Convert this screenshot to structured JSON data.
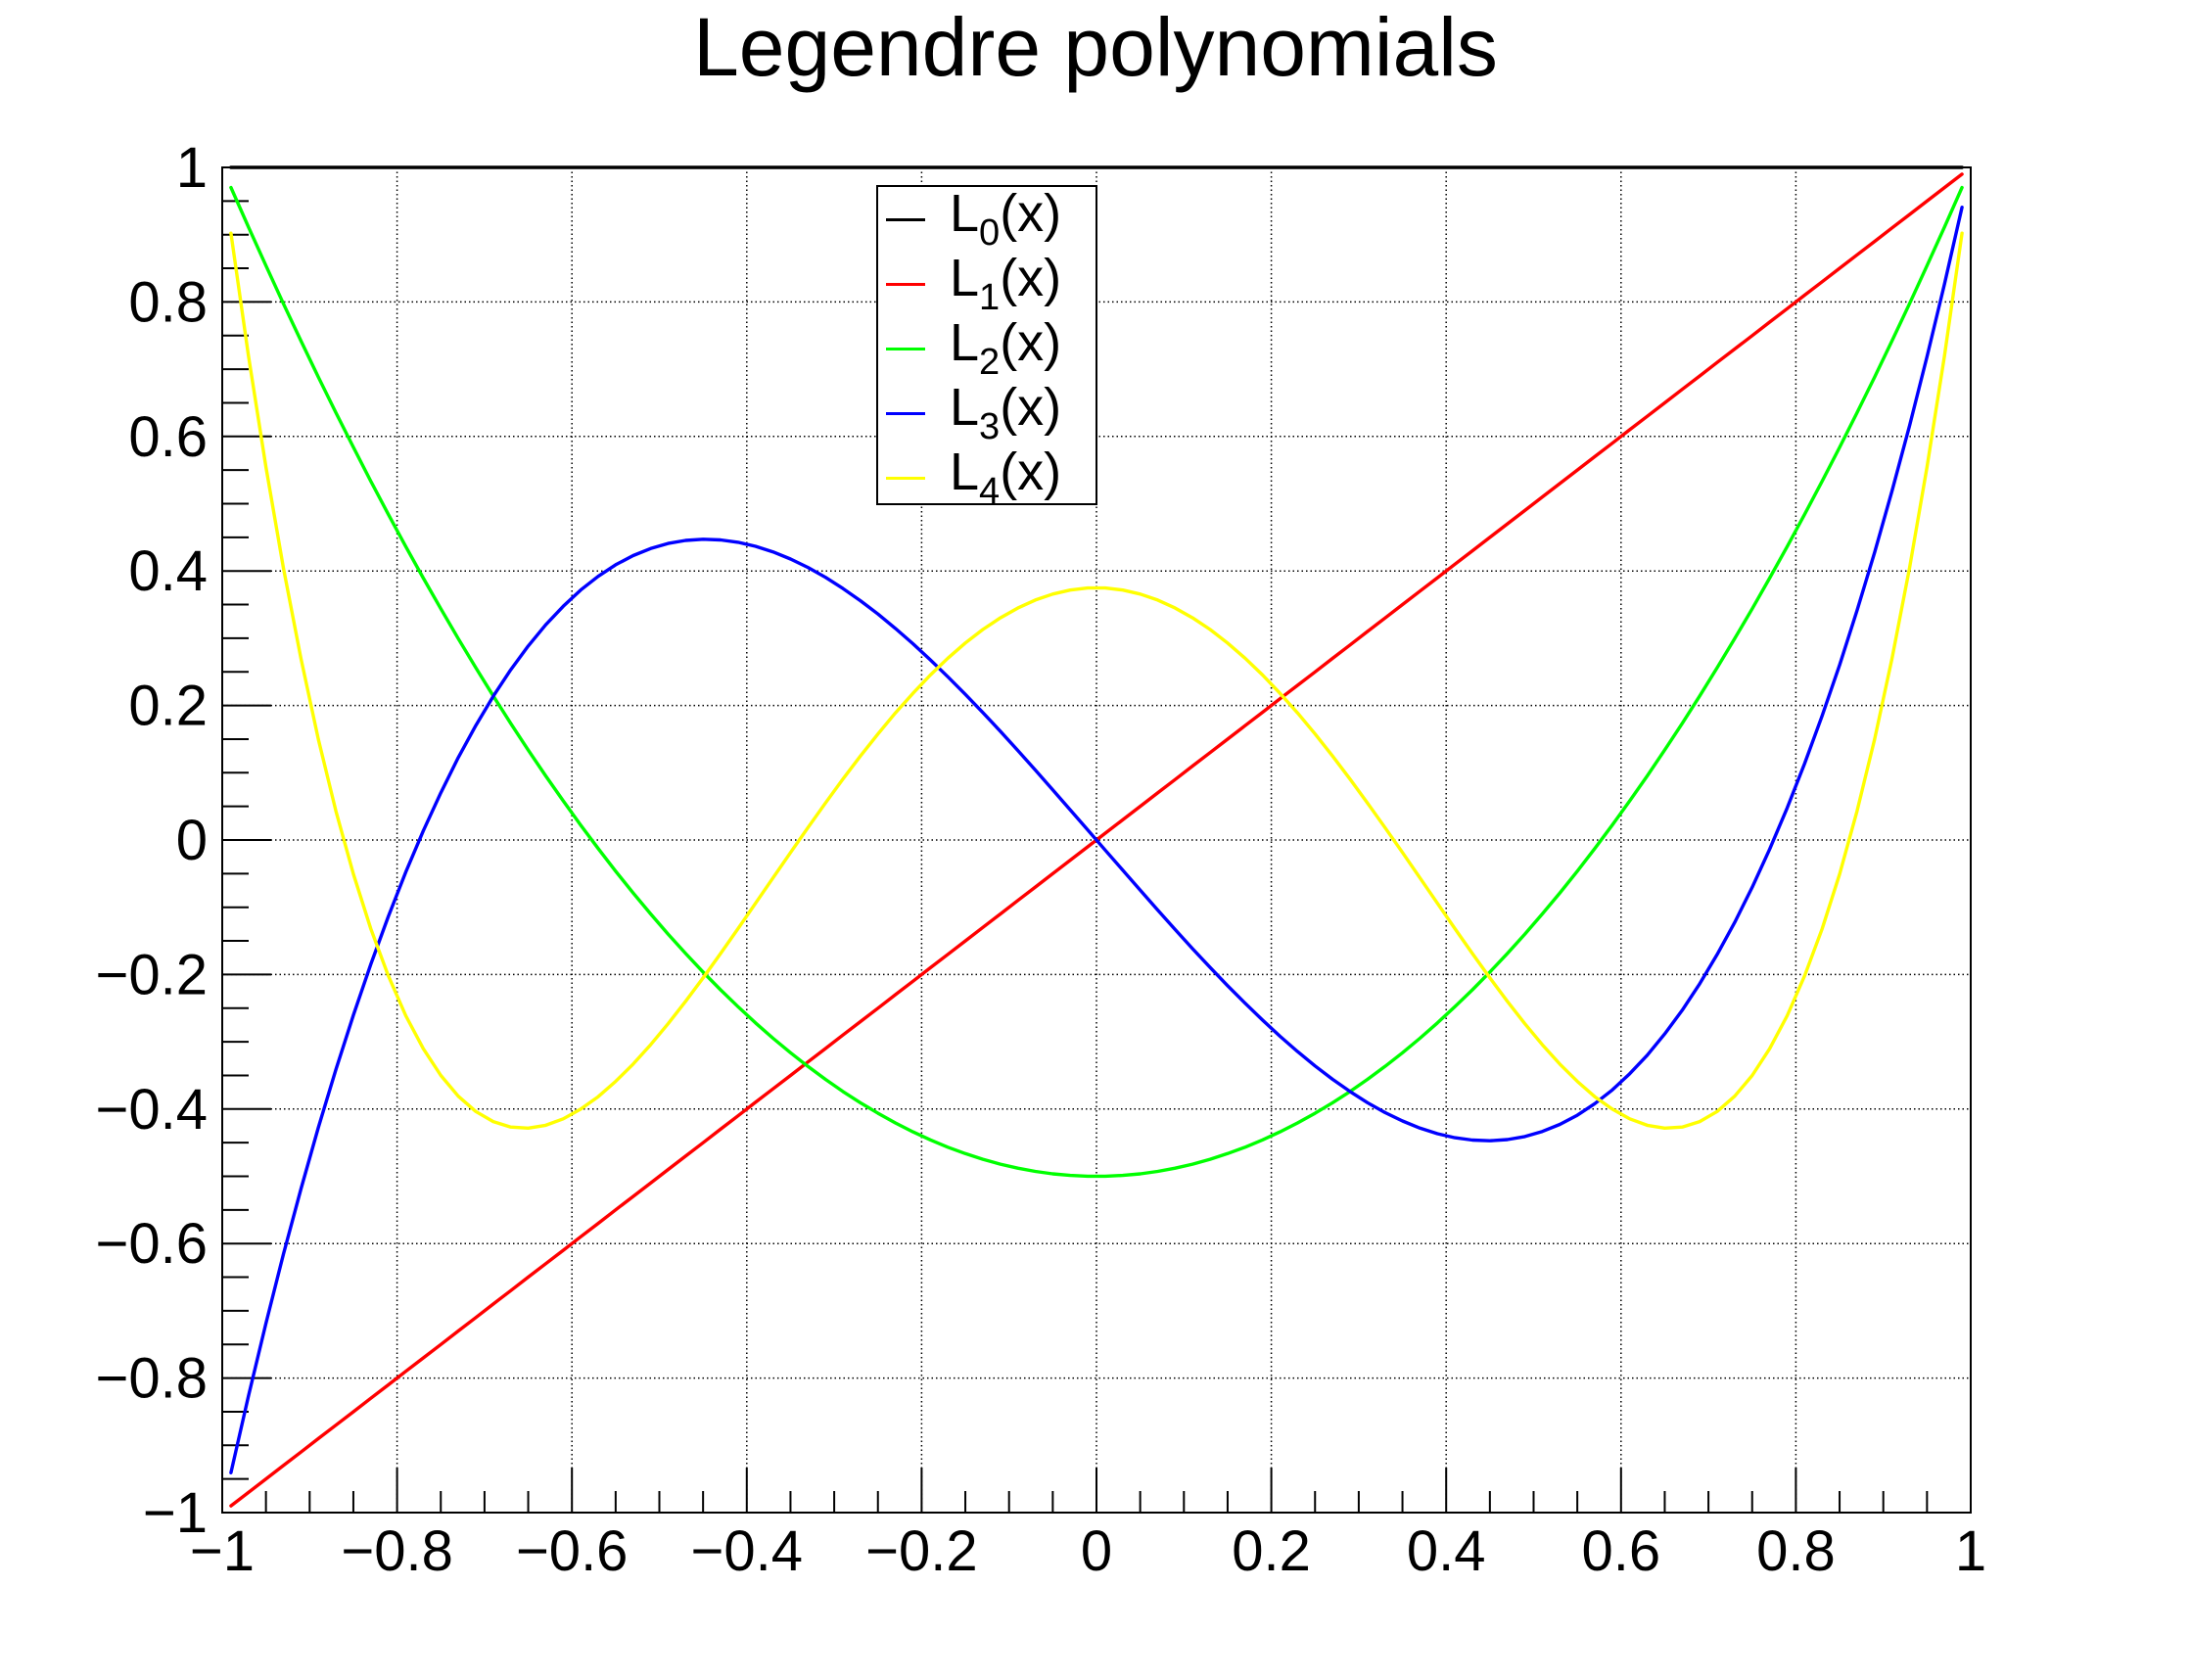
{
  "title": "Legendre polynomials",
  "chart_data": {
    "type": "line",
    "title": "Legendre polynomials",
    "xlabel": "",
    "ylabel": "",
    "xlim": [
      -1,
      1
    ],
    "ylim": [
      -1,
      1
    ],
    "grid": true,
    "grid_style": "dotted",
    "axis_color": "#000000",
    "background_color": "#ffffff",
    "minor_tick_step": 0.05,
    "legend_position": "top-center",
    "xticks": {
      "values": [
        -1,
        -0.8,
        -0.6,
        -0.4,
        -0.2,
        0,
        0.2,
        0.4,
        0.6,
        0.8,
        1
      ],
      "labels": [
        "−1",
        "−0.8",
        "−0.6",
        "−0.4",
        "−0.2",
        "0",
        "0.2",
        "0.4",
        "0.6",
        "0.8",
        "1"
      ]
    },
    "yticks": {
      "values": [
        -1,
        -0.8,
        -0.6,
        -0.4,
        -0.2,
        0,
        0.2,
        0.4,
        0.6,
        0.8,
        1
      ],
      "labels": [
        "−1",
        "−0.8",
        "−0.6",
        "−0.4",
        "−0.2",
        "0",
        "0.2",
        "0.4",
        "0.6",
        "0.8",
        "1"
      ]
    },
    "legend": {
      "entries": [
        {
          "base": "L",
          "sub": "0",
          "suffix": "(x)",
          "color": "#000000"
        },
        {
          "base": "L",
          "sub": "1",
          "suffix": "(x)",
          "color": "#ff0000"
        },
        {
          "base": "L",
          "sub": "2",
          "suffix": "(x)",
          "color": "#00ff00"
        },
        {
          "base": "L",
          "sub": "3",
          "suffix": "(x)",
          "color": "#0000ff"
        },
        {
          "base": "L",
          "sub": "4",
          "suffix": "(x)",
          "color": "#ffff00"
        }
      ]
    },
    "x": [
      -0.99,
      -0.97,
      -0.95,
      -0.93,
      -0.91,
      -0.89,
      -0.87,
      -0.85,
      -0.83,
      -0.81,
      -0.79,
      -0.77,
      -0.75,
      -0.73,
      -0.71,
      -0.69,
      -0.67,
      -0.65,
      -0.63,
      -0.61,
      -0.59,
      -0.57,
      -0.55,
      -0.53,
      -0.51,
      -0.49,
      -0.47,
      -0.45,
      -0.43,
      -0.41,
      -0.39,
      -0.37,
      -0.35,
      -0.33,
      -0.31,
      -0.29,
      -0.27,
      -0.25,
      -0.23,
      -0.21,
      -0.19,
      -0.17,
      -0.15,
      -0.13,
      -0.11,
      -0.09,
      -0.07,
      -0.05,
      -0.03,
      -0.01,
      0.01,
      0.03,
      0.05,
      0.07,
      0.09,
      0.11,
      0.13,
      0.15,
      0.17,
      0.19,
      0.21,
      0.23,
      0.25,
      0.27,
      0.29,
      0.31,
      0.33,
      0.35,
      0.37,
      0.39,
      0.41,
      0.43,
      0.45,
      0.47,
      0.49,
      0.51,
      0.53,
      0.55,
      0.57,
      0.59,
      0.61,
      0.63,
      0.65,
      0.67,
      0.69,
      0.71,
      0.73,
      0.75,
      0.77,
      0.79,
      0.81,
      0.83,
      0.85,
      0.87,
      0.89,
      0.91,
      0.93,
      0.95,
      0.97,
      0.99
    ],
    "series": [
      {
        "id": "L0",
        "name": "L0(x)",
        "color": "#000000",
        "y_const": 1
      },
      {
        "id": "L1",
        "name": "L1(x)",
        "color": "#ff0000",
        "y": [
          -0.99,
          -0.97,
          -0.95,
          -0.93,
          -0.91,
          -0.89,
          -0.87,
          -0.85,
          -0.83,
          -0.81,
          -0.79,
          -0.77,
          -0.75,
          -0.73,
          -0.71,
          -0.69,
          -0.67,
          -0.65,
          -0.63,
          -0.61,
          -0.59,
          -0.57,
          -0.55,
          -0.53,
          -0.51,
          -0.49,
          -0.47,
          -0.45,
          -0.43,
          -0.41,
          -0.39,
          -0.37,
          -0.35,
          -0.33,
          -0.31,
          -0.29,
          -0.27,
          -0.25,
          -0.23,
          -0.21,
          -0.19,
          -0.17,
          -0.15,
          -0.13,
          -0.11,
          -0.09,
          -0.07,
          -0.05,
          -0.03,
          -0.01,
          0.01,
          0.03,
          0.05,
          0.07,
          0.09,
          0.11,
          0.13,
          0.15,
          0.17,
          0.19,
          0.21,
          0.23,
          0.25,
          0.27,
          0.29,
          0.31,
          0.33,
          0.35,
          0.37,
          0.39,
          0.41,
          0.43,
          0.45,
          0.47,
          0.49,
          0.51,
          0.53,
          0.55,
          0.57,
          0.59,
          0.61,
          0.63,
          0.65,
          0.67,
          0.69,
          0.71,
          0.73,
          0.75,
          0.77,
          0.79,
          0.81,
          0.83,
          0.85,
          0.87,
          0.89,
          0.91,
          0.93,
          0.95,
          0.97,
          0.99
        ]
      },
      {
        "id": "L2",
        "name": "L2(x)",
        "color": "#00ff00",
        "y": [
          0.9702,
          0.9114,
          0.8538,
          0.7974,
          0.7422,
          0.6882,
          0.6354,
          0.5838,
          0.5334,
          0.4842,
          0.4362,
          0.3894,
          0.3438,
          0.2994,
          0.2562,
          0.2142,
          0.1734,
          0.1338,
          0.0954,
          0.0582,
          0.0222,
          -0.0127,
          -0.0463,
          -0.0787,
          -0.1099,
          -0.1399,
          -0.1687,
          -0.1963,
          -0.2227,
          -0.2479,
          -0.2719,
          -0.2947,
          -0.3163,
          -0.3367,
          -0.3559,
          -0.3739,
          -0.3907,
          -0.4063,
          -0.4207,
          -0.4339,
          -0.4459,
          -0.4567,
          -0.4663,
          -0.4747,
          -0.4819,
          -0.4879,
          -0.4927,
          -0.4963,
          -0.4987,
          -0.4999,
          -0.4999,
          -0.4987,
          -0.4963,
          -0.4927,
          -0.4879,
          -0.4819,
          -0.4747,
          -0.4663,
          -0.4567,
          -0.4459,
          -0.4339,
          -0.4207,
          -0.4063,
          -0.3907,
          -0.3739,
          -0.3559,
          -0.3367,
          -0.3163,
          -0.2947,
          -0.2719,
          -0.2479,
          -0.2227,
          -0.1963,
          -0.1687,
          -0.1399,
          -0.1099,
          -0.0787,
          -0.0463,
          -0.0127,
          0.0222,
          0.0582,
          0.0954,
          0.1338,
          0.1734,
          0.2142,
          0.2562,
          0.2994,
          0.3438,
          0.3894,
          0.4362,
          0.4842,
          0.5334,
          0.5838,
          0.6354,
          0.6882,
          0.7422,
          0.7974,
          0.8538,
          0.9114,
          0.9702
        ]
      },
      {
        "id": "L3",
        "name": "L3(x)",
        "color": "#0000ff",
        "y": [
          -0.9407,
          -0.8267,
          -0.7184,
          -0.6159,
          -0.5189,
          -0.4274,
          -0.3413,
          -0.2603,
          -0.1845,
          -0.1136,
          -0.0476,
          0.0137,
          0.0703,
          0.1225,
          0.1702,
          0.2137,
          0.2531,
          0.2884,
          0.3199,
          0.3475,
          0.3716,
          0.392,
          0.4091,
          0.4228,
          0.4334,
          0.4409,
          0.4454,
          0.4472,
          0.4462,
          0.4427,
          0.4367,
          0.4284,
          0.4178,
          0.4052,
          0.3905,
          0.374,
          0.3558,
          0.3359,
          0.3146,
          0.2918,
          0.2679,
          0.2427,
          0.2166,
          0.1895,
          0.1617,
          0.1332,
          0.1041,
          0.0747,
          0.0449,
          0.015,
          -0.015,
          -0.0449,
          -0.0747,
          -0.1041,
          -0.1332,
          -0.1617,
          -0.1895,
          -0.2166,
          -0.2427,
          -0.2679,
          -0.2918,
          -0.3146,
          -0.3359,
          -0.3558,
          -0.374,
          -0.3905,
          -0.4052,
          -0.4178,
          -0.4284,
          -0.4367,
          -0.4427,
          -0.4462,
          -0.4472,
          -0.4454,
          -0.4409,
          -0.4334,
          -0.4228,
          -0.4091,
          -0.392,
          -0.3716,
          -0.3475,
          -0.3199,
          -0.2884,
          -0.2531,
          -0.2137,
          -0.1702,
          -0.1225,
          -0.0703,
          -0.0137,
          0.0476,
          0.1136,
          0.1845,
          0.2603,
          0.3413,
          0.4274,
          0.5189,
          0.6159,
          0.7184,
          0.8267,
          0.9407
        ]
      },
      {
        "id": "L4",
        "name": "L4(x)",
        "color": "#ffff00",
        "y": [
          0.9022,
          0.7198,
          0.5541,
          0.4044,
          0.2698,
          0.1496,
          0.0431,
          -0.0506,
          -0.1321,
          -0.2021,
          -0.2613,
          -0.3104,
          -0.3501,
          -0.381,
          -0.4036,
          -0.4187,
          -0.4268,
          -0.4284,
          -0.4242,
          -0.4146,
          -0.4002,
          -0.3816,
          -0.359,
          -0.3332,
          -0.3044,
          -0.2732,
          -0.2399,
          -0.205,
          -0.1688,
          -0.1317,
          -0.0942,
          -0.0564,
          -0.0187,
          0.0185,
          0.055,
          0.0906,
          0.1249,
          0.1577,
          0.1889,
          0.2181,
          0.2453,
          0.2703,
          0.2928,
          0.3129,
          0.3303,
          0.3449,
          0.3567,
          0.3657,
          0.3716,
          0.3746,
          0.3746,
          0.3716,
          0.3657,
          0.3567,
          0.3449,
          0.3303,
          0.3129,
          0.2928,
          0.2703,
          0.2453,
          0.2181,
          0.1889,
          0.1577,
          0.1249,
          0.0906,
          0.055,
          0.0185,
          -0.0187,
          -0.0564,
          -0.0942,
          -0.1317,
          -0.1688,
          -0.205,
          -0.2399,
          -0.2732,
          -0.3044,
          -0.3332,
          -0.359,
          -0.3816,
          -0.4002,
          -0.4146,
          -0.4242,
          -0.4284,
          -0.4268,
          -0.4187,
          -0.4036,
          -0.381,
          -0.3501,
          -0.3104,
          -0.2613,
          -0.2021,
          -0.1321,
          -0.0506,
          0.0431,
          0.1496,
          0.2698,
          0.4044,
          0.5541,
          0.7198,
          0.9022
        ]
      }
    ]
  }
}
